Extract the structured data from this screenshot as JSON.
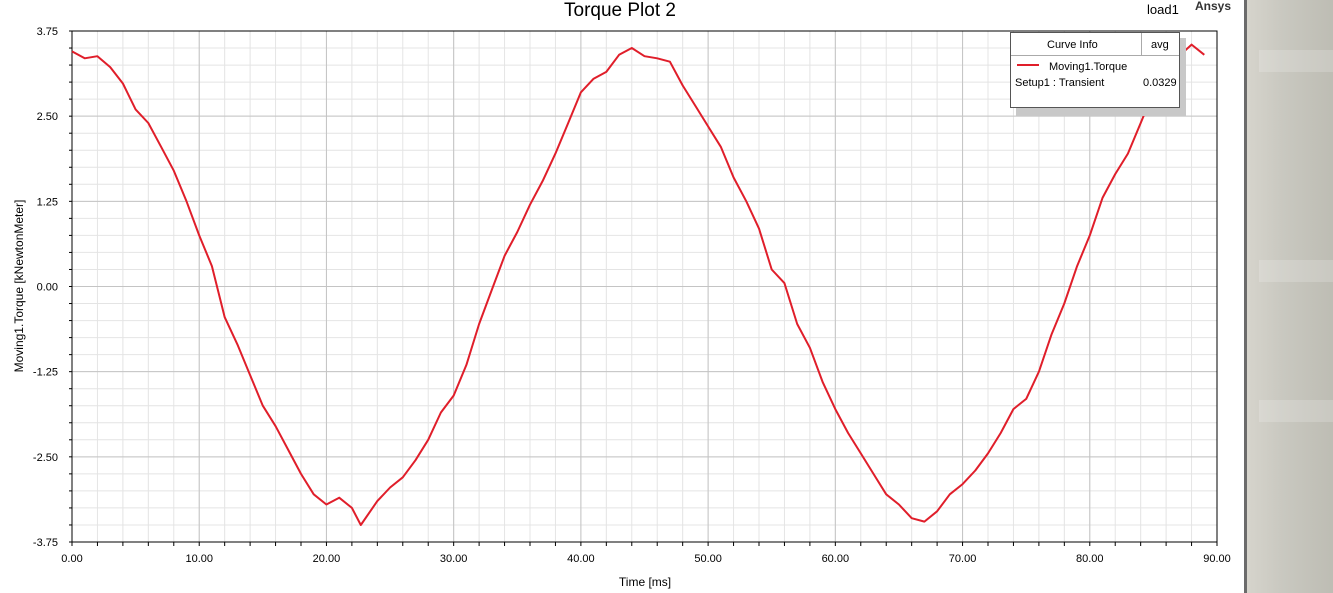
{
  "header": {
    "title": "Torque Plot 2",
    "design_tag": "load1",
    "brand": "Ansys"
  },
  "legend": {
    "header_info": "Curve Info",
    "header_avg": "avg",
    "curve_name": "Moving1.Torque",
    "curve_setup": "Setup1 : Transient",
    "curve_avg": "0.0329",
    "curve_color": "#e01e2a"
  },
  "chart_data": {
    "type": "line",
    "title": "Torque Plot 2",
    "xlabel": "Time [ms]",
    "ylabel": "Moving1.Torque [kNewtonMeter]",
    "xlim": [
      0,
      90
    ],
    "ylim": [
      -3.75,
      3.75
    ],
    "xticks": [
      "0.00",
      "10.00",
      "20.00",
      "30.00",
      "40.00",
      "50.00",
      "60.00",
      "70.00",
      "80.00",
      "90.00"
    ],
    "yticks": [
      "3.75",
      "2.50",
      "1.25",
      "0.00",
      "-1.25",
      "-2.50",
      "-3.75"
    ],
    "grid": true,
    "legend_position": "top-right",
    "series": [
      {
        "name": "Moving1.Torque",
        "color": "#e01e2a",
        "x": [
          0,
          1,
          2,
          3,
          4,
          5,
          6,
          7,
          8,
          9,
          10,
          11,
          12,
          13,
          14,
          15,
          16,
          17,
          18,
          19,
          20,
          21,
          22,
          22.7,
          24,
          25,
          26,
          27,
          28,
          29,
          30,
          31,
          32,
          33,
          34,
          35,
          36,
          37,
          38,
          39,
          40,
          41,
          42,
          43,
          44,
          45,
          46,
          47,
          48,
          49,
          50,
          51,
          52,
          53,
          54,
          55,
          56,
          57,
          58,
          59,
          60,
          61,
          62,
          63,
          64,
          65,
          66,
          67,
          68,
          69,
          70,
          71,
          72,
          73,
          74,
          75,
          76,
          77,
          78,
          79,
          80,
          81,
          82,
          83,
          84,
          85,
          86,
          87,
          88,
          89
        ],
        "values": [
          3.45,
          3.35,
          3.38,
          3.22,
          2.98,
          2.6,
          2.4,
          2.05,
          1.7,
          1.25,
          0.75,
          0.3,
          -0.45,
          -0.85,
          -1.3,
          -1.75,
          -2.05,
          -2.4,
          -2.75,
          -3.05,
          -3.2,
          -3.1,
          -3.25,
          -3.5,
          -3.15,
          -2.95,
          -2.8,
          -2.55,
          -2.25,
          -1.85,
          -1.6,
          -1.15,
          -0.55,
          -0.05,
          0.45,
          0.8,
          1.2,
          1.55,
          1.95,
          2.4,
          2.85,
          3.05,
          3.15,
          3.4,
          3.5,
          3.38,
          3.35,
          3.3,
          2.95,
          2.65,
          2.35,
          2.05,
          1.6,
          1.25,
          0.85,
          0.25,
          0.05,
          -0.55,
          -0.9,
          -1.4,
          -1.8,
          -2.15,
          -2.45,
          -2.75,
          -3.05,
          -3.2,
          -3.4,
          -3.45,
          -3.3,
          -3.05,
          -2.9,
          -2.7,
          -2.45,
          -2.15,
          -1.8,
          -1.65,
          -1.25,
          -0.7,
          -0.25,
          0.3,
          0.75,
          1.3,
          1.65,
          1.95,
          2.4,
          2.85,
          3.15,
          3.38,
          3.55,
          3.4
        ]
      }
    ]
  }
}
